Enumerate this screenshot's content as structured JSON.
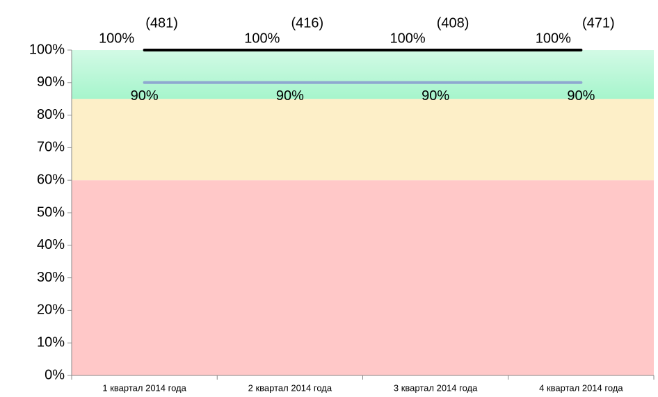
{
  "chart_data": {
    "type": "line",
    "categories": [
      "1 квартал 2014 года",
      "2 квартал 2014 года",
      "3 квартал 2014 года",
      "4 квартал 2014 года"
    ],
    "series": [
      {
        "color": "#000000",
        "values": [
          100,
          100,
          100,
          100
        ],
        "value_labels": [
          "100%",
          "100%",
          "100%",
          "100%"
        ]
      },
      {
        "color": "#8fa8d0",
        "values": [
          90,
          90,
          90,
          90
        ],
        "value_labels": [
          "90%",
          "90%",
          "90%",
          "90%"
        ]
      }
    ],
    "annotations": [
      "(481)",
      "(416)",
      "(408)",
      "(471)"
    ],
    "bands": [
      {
        "from": 0,
        "to": 60,
        "color": "#ffc8c8"
      },
      {
        "from": 60,
        "to": 85,
        "color": "#fdefc8"
      },
      {
        "from": 85,
        "to": 100,
        "color": "#a6f5cc"
      }
    ],
    "ylim": [
      0,
      100
    ],
    "yticks": [
      {
        "value": 0,
        "label": "0%"
      },
      {
        "value": 10,
        "label": "10%"
      },
      {
        "value": 20,
        "label": "20%"
      },
      {
        "value": 30,
        "label": "30%"
      },
      {
        "value": 40,
        "label": "40%"
      },
      {
        "value": 50,
        "label": "50%"
      },
      {
        "value": 60,
        "label": "60%"
      },
      {
        "value": 70,
        "label": "70%"
      },
      {
        "value": 80,
        "label": "80%"
      },
      {
        "value": 90,
        "label": "90%"
      },
      {
        "value": 100,
        "label": "100%"
      }
    ]
  }
}
